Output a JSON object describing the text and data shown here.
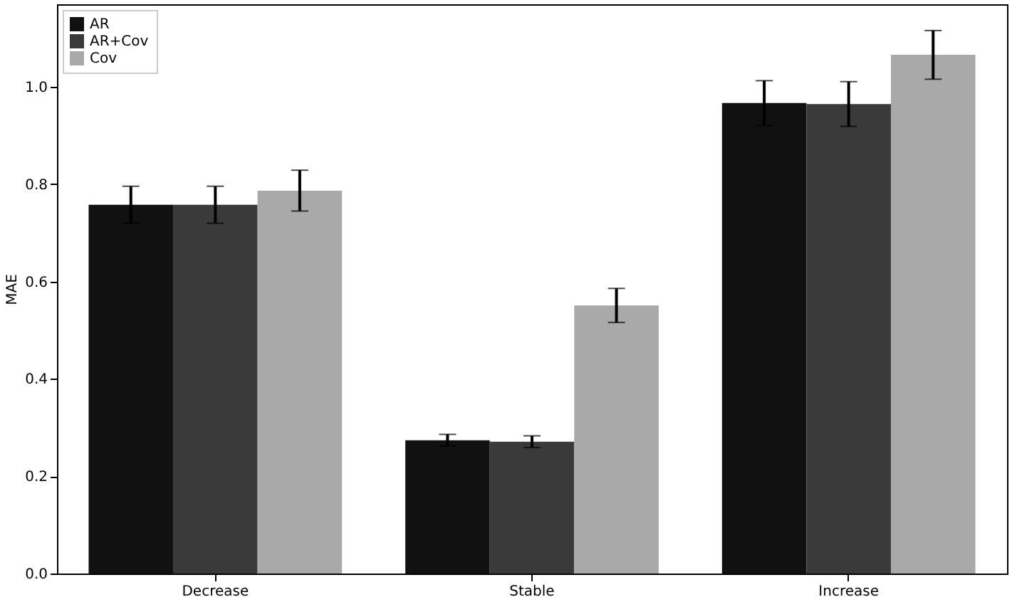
{
  "chart_data": {
    "type": "bar",
    "ylabel": "MAE",
    "categories": [
      "Decrease",
      "Stable",
      "Increase"
    ],
    "series": [
      {
        "name": "AR",
        "color": "#111111",
        "values": [
          0.758,
          0.274,
          0.967
        ],
        "errors": [
          0.038,
          0.012,
          0.046
        ]
      },
      {
        "name": "AR+Cov",
        "color": "#3a3a3a",
        "values": [
          0.758,
          0.271,
          0.965
        ],
        "errors": [
          0.038,
          0.012,
          0.046
        ]
      },
      {
        "name": "Cov",
        "color": "#a9a9a9",
        "values": [
          0.787,
          0.551,
          1.066
        ],
        "errors": [
          0.042,
          0.035,
          0.05
        ]
      }
    ],
    "ylim": [
      0,
      1.17
    ],
    "yticks": [
      {
        "value": 0,
        "label": "0.0"
      },
      {
        "value": 0.2,
        "label": "0.2"
      },
      {
        "value": 0.4,
        "label": "0.4"
      },
      {
        "value": 0.6,
        "label": "0.6"
      },
      {
        "value": 0.8,
        "label": "0.8"
      },
      {
        "value": 1,
        "label": "1.0"
      }
    ],
    "grid": false,
    "legend": "top left"
  }
}
